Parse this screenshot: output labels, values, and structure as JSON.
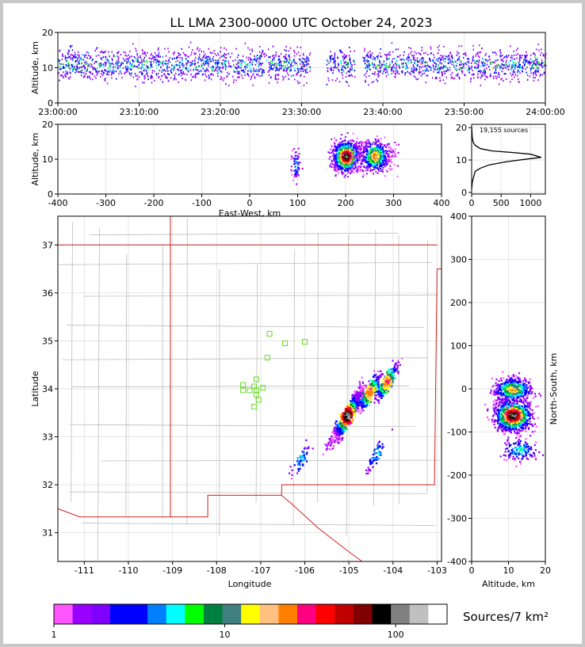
{
  "title": "LL LMA 2300-0000 UTC October 24, 2023",
  "colors": {
    "border": "#c8c8c8",
    "map_state": "#d42020",
    "map_county": "#bdbdbd",
    "network": "#66dd22",
    "grid": "#e6e6e6"
  },
  "colorbar": {
    "label": "Sources/7 km²",
    "colors": [
      "#ff55ff",
      "#9900ff",
      "#8000ff",
      "#0000ff",
      "#0000ff",
      "#0080ff",
      "#00ffff",
      "#00ff00",
      "#008040",
      "#408080",
      "#ffff00",
      "#ffc080",
      "#ff8000",
      "#ff0080",
      "#ff0000",
      "#c00000",
      "#800000",
      "#000000",
      "#808080",
      "#c0c0c0",
      "#ffffff"
    ],
    "scale": "log",
    "range": [
      1,
      200
    ],
    "tick_labels": [
      "1",
      "10",
      "100"
    ],
    "tick_values": [
      1,
      10,
      100
    ]
  },
  "chart_data": [
    {
      "id": "time-height",
      "type": "heatmap",
      "xlabel": "",
      "ylabel": "Altitude, km",
      "x_tick_labels": [
        "23:00:00",
        "23:10:00",
        "23:20:00",
        "23:30:00",
        "23:40:00",
        "23:50:00",
        "24:00:00"
      ],
      "ylim": [
        0,
        20
      ],
      "y_ticks": [
        0,
        10,
        20
      ],
      "grid": true,
      "gaps": [
        [
          "23:31:00",
          "23:33:00"
        ],
        [
          "23:36:30",
          "23:37:30"
        ]
      ],
      "peak_altitude_km": 11
    },
    {
      "id": "ew-height",
      "type": "heatmap",
      "xlabel": "East-West, km",
      "ylabel": "Altitude, km",
      "xlim": [
        -400,
        400
      ],
      "x_ticks": [
        -400,
        -300,
        -200,
        -100,
        0,
        100,
        200,
        300,
        400
      ],
      "ylim": [
        0,
        20
      ],
      "y_ticks": [
        0,
        10,
        20
      ],
      "grid": true,
      "clusters": [
        {
          "x": 200,
          "y": 11,
          "intensity": "high"
        },
        {
          "x": 260,
          "y": 11,
          "intensity": "medium"
        },
        {
          "x": 95,
          "y": 8.5,
          "intensity": "low"
        }
      ]
    },
    {
      "id": "altitude-histogram",
      "type": "line",
      "annotation": "19,155 sources",
      "xlim": [
        0,
        1250
      ],
      "x_ticks": [
        0,
        500,
        1000
      ],
      "ylim": [
        -0.5,
        21
      ],
      "y_ticks": [
        0,
        10,
        20
      ],
      "grid": true,
      "points": [
        [
          0,
          1
        ],
        [
          10,
          3
        ],
        [
          30,
          4.5
        ],
        [
          60,
          6.5
        ],
        [
          150,
          7.5
        ],
        [
          300,
          8.5
        ],
        [
          600,
          9.5
        ],
        [
          900,
          10.2
        ],
        [
          1180,
          10.8
        ],
        [
          1000,
          11.8
        ],
        [
          700,
          12.3
        ],
        [
          350,
          12.8
        ],
        [
          150,
          13.5
        ],
        [
          60,
          14.5
        ],
        [
          25,
          15.5
        ],
        [
          10,
          17
        ],
        [
          5,
          18.5
        ],
        [
          2,
          20
        ]
      ]
    },
    {
      "id": "plan-view",
      "type": "heatmap",
      "xlabel": "Longitude",
      "ylabel": "Latitude",
      "xlim": [
        -111.6,
        -102.9
      ],
      "x_ticks": [
        -111,
        -110,
        -109,
        -108,
        -107,
        -106,
        -105,
        -104,
        -103
      ],
      "ylim": [
        30.4,
        37.6
      ],
      "y_ticks": [
        31,
        32,
        33,
        34,
        35,
        36,
        37
      ],
      "grid": true,
      "stations": [
        [
          -106.8,
          35.15
        ],
        [
          -106.45,
          34.95
        ],
        [
          -106.0,
          34.98
        ],
        [
          -106.85,
          34.65
        ],
        [
          -107.1,
          34.2
        ],
        [
          -107.15,
          34.05
        ],
        [
          -107.4,
          34.08
        ],
        [
          -107.4,
          33.97
        ],
        [
          -107.25,
          33.97
        ],
        [
          -107.1,
          33.97
        ],
        [
          -106.95,
          34.02
        ],
        [
          -107.1,
          33.88
        ],
        [
          -107.05,
          33.77
        ],
        [
          -107.15,
          33.63
        ]
      ],
      "clusters": [
        {
          "lon": -105.05,
          "lat": 33.45,
          "intensity": "high"
        },
        {
          "lon": -104.55,
          "lat": 33.95,
          "intensity": "medium"
        },
        {
          "lon": -104.15,
          "lat": 34.15,
          "intensity": "medium"
        },
        {
          "lon": -104.4,
          "lat": 32.65,
          "intensity": "low"
        },
        {
          "lon": -106.1,
          "lat": 32.55,
          "intensity": "low"
        }
      ]
    },
    {
      "id": "ns-height",
      "type": "heatmap",
      "xlabel": "Altitude, km",
      "ylabel": "North-South, km",
      "xlim": [
        0,
        20
      ],
      "x_ticks": [
        0,
        10,
        20
      ],
      "ylim": [
        -400,
        400
      ],
      "y_ticks": [
        -400,
        -300,
        -200,
        -100,
        0,
        100,
        200,
        300,
        400
      ],
      "grid": true,
      "clusters": [
        {
          "x": 11,
          "y": -60,
          "intensity": "high"
        },
        {
          "x": 11,
          "y": 0,
          "intensity": "medium"
        },
        {
          "x": 13,
          "y": -140,
          "intensity": "low"
        }
      ]
    }
  ]
}
